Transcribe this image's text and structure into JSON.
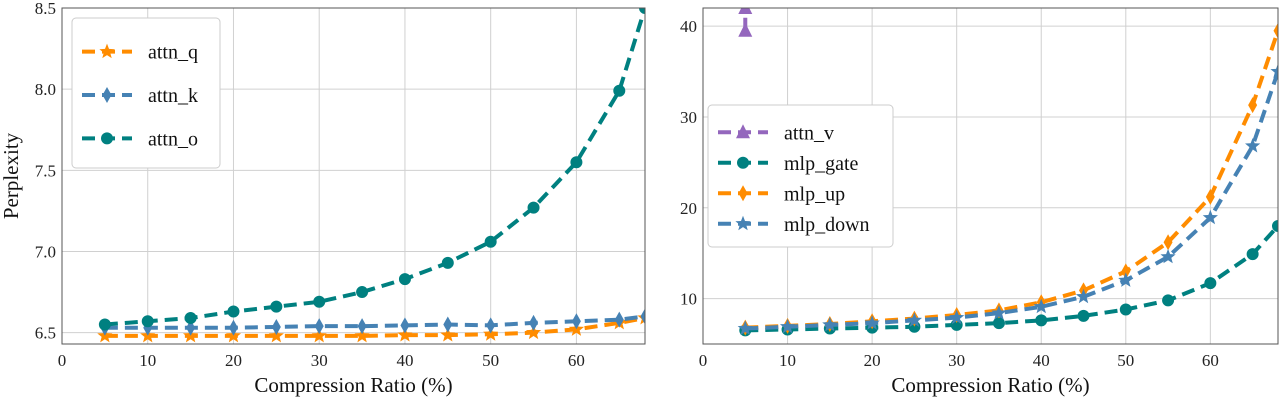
{
  "chart_data": [
    {
      "type": "line",
      "xlabel": "Compression Ratio (%)",
      "ylabel": "Perplexity",
      "xlim": [
        0,
        68
      ],
      "ylim": [
        6.43,
        8.5
      ],
      "xticks": [
        0,
        10,
        20,
        30,
        40,
        50,
        60
      ],
      "yticks": [
        6.5,
        7.0,
        7.5,
        8.0,
        8.5
      ],
      "ytick_labels": [
        "6.5",
        "7.0",
        "7.5",
        "8.0",
        "8.5"
      ],
      "grid": true,
      "legend_position": "top-left",
      "x": [
        5,
        10,
        15,
        20,
        25,
        30,
        35,
        40,
        45,
        50,
        55,
        60,
        65,
        68
      ],
      "series": [
        {
          "name": "attn_q",
          "color": "#ff8c00",
          "marker": "star",
          "values": [
            6.48,
            6.48,
            6.48,
            6.48,
            6.48,
            6.48,
            6.48,
            6.485,
            6.485,
            6.49,
            6.5,
            6.52,
            6.56,
            6.59
          ]
        },
        {
          "name": "attn_k",
          "color": "#4682b4",
          "marker": "thin_diamond",
          "values": [
            6.53,
            6.53,
            6.53,
            6.53,
            6.535,
            6.54,
            6.54,
            6.545,
            6.55,
            6.545,
            6.56,
            6.57,
            6.58,
            6.6
          ]
        },
        {
          "name": "attn_o",
          "color": "#008080",
          "marker": "circle",
          "values": [
            6.55,
            6.57,
            6.59,
            6.63,
            6.66,
            6.69,
            6.75,
            6.83,
            6.93,
            7.06,
            7.27,
            7.55,
            7.99,
            8.5
          ]
        }
      ]
    },
    {
      "type": "line",
      "xlabel": "Compression Ratio (%)",
      "ylabel": "",
      "xlim": [
        0,
        68
      ],
      "ylim": [
        5,
        42
      ],
      "xticks": [
        0,
        10,
        20,
        30,
        40,
        50,
        60
      ],
      "yticks": [
        10,
        20,
        30,
        40
      ],
      "ytick_labels": [
        "10",
        "20",
        "30",
        "40"
      ],
      "grid": true,
      "legend_position": "center-left",
      "x": [
        5,
        10,
        15,
        20,
        25,
        30,
        35,
        40,
        45,
        50,
        55,
        60,
        65,
        68
      ],
      "series": [
        {
          "name": "attn_v",
          "color": "#9467bd",
          "marker": "triangle",
          "points": [
            [
              5,
              39.5
            ],
            [
              5,
              42
            ]
          ]
        },
        {
          "name": "mlp_gate",
          "color": "#008080",
          "marker": "circle",
          "values": [
            6.5,
            6.6,
            6.7,
            6.8,
            6.9,
            7.1,
            7.3,
            7.6,
            8.1,
            8.8,
            9.8,
            11.7,
            14.9,
            18
          ]
        },
        {
          "name": "mlp_up",
          "color": "#ff8c00",
          "marker": "thin_diamond",
          "values": [
            6.8,
            7.0,
            7.2,
            7.5,
            7.8,
            8.2,
            8.7,
            9.6,
            10.9,
            13.0,
            16.2,
            21.2,
            31.3,
            39.5
          ]
        },
        {
          "name": "mlp_down",
          "color": "#4682b4",
          "marker": "star",
          "values": [
            6.7,
            6.9,
            7.1,
            7.3,
            7.6,
            7.9,
            8.4,
            9.1,
            10.2,
            12.0,
            14.6,
            18.9,
            26.8,
            35
          ]
        }
      ]
    }
  ]
}
